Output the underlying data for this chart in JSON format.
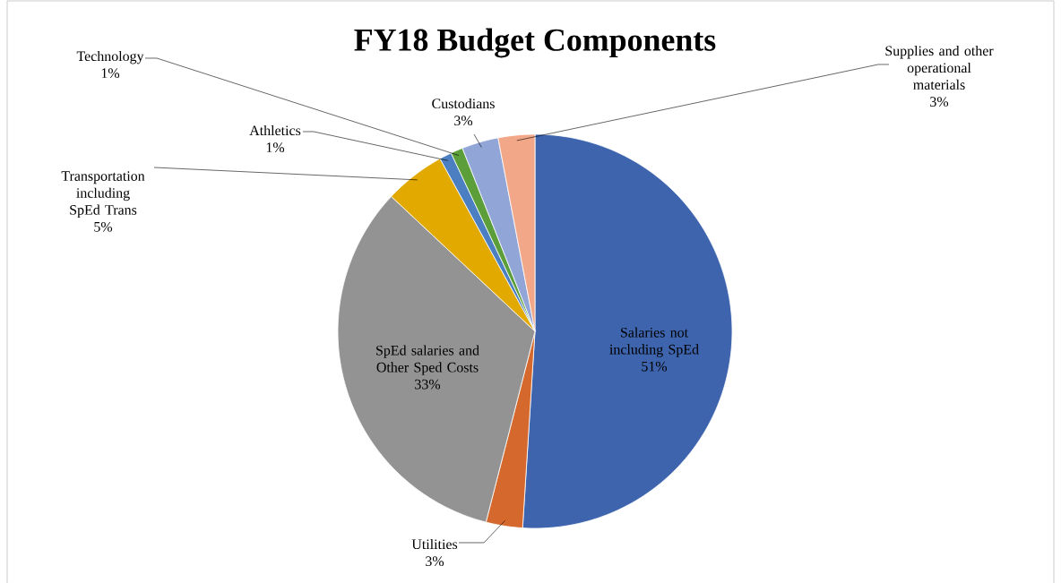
{
  "chart_data": {
    "type": "pie",
    "title": "FY18  Budget Components",
    "categories": [
      "Salaries not including SpEd",
      "Utilities",
      "SpEd salaries and Other Sped Costs",
      "Transportation including SpEd Trans",
      "Athletics",
      "Technology",
      "Custodians",
      "Supplies and other operational materials"
    ],
    "values": [
      51,
      3,
      33,
      5,
      1,
      1,
      3,
      3
    ],
    "value_labels": [
      "51%",
      "3%",
      "33%",
      "5%",
      "1%",
      "1%",
      "3%",
      "3%"
    ],
    "colors": [
      "#3d64ad",
      "#d5692d",
      "#939393",
      "#e2aa00",
      "#4b7fc1",
      "#5c9e3a",
      "#91a5d7",
      "#f1a788"
    ]
  }
}
